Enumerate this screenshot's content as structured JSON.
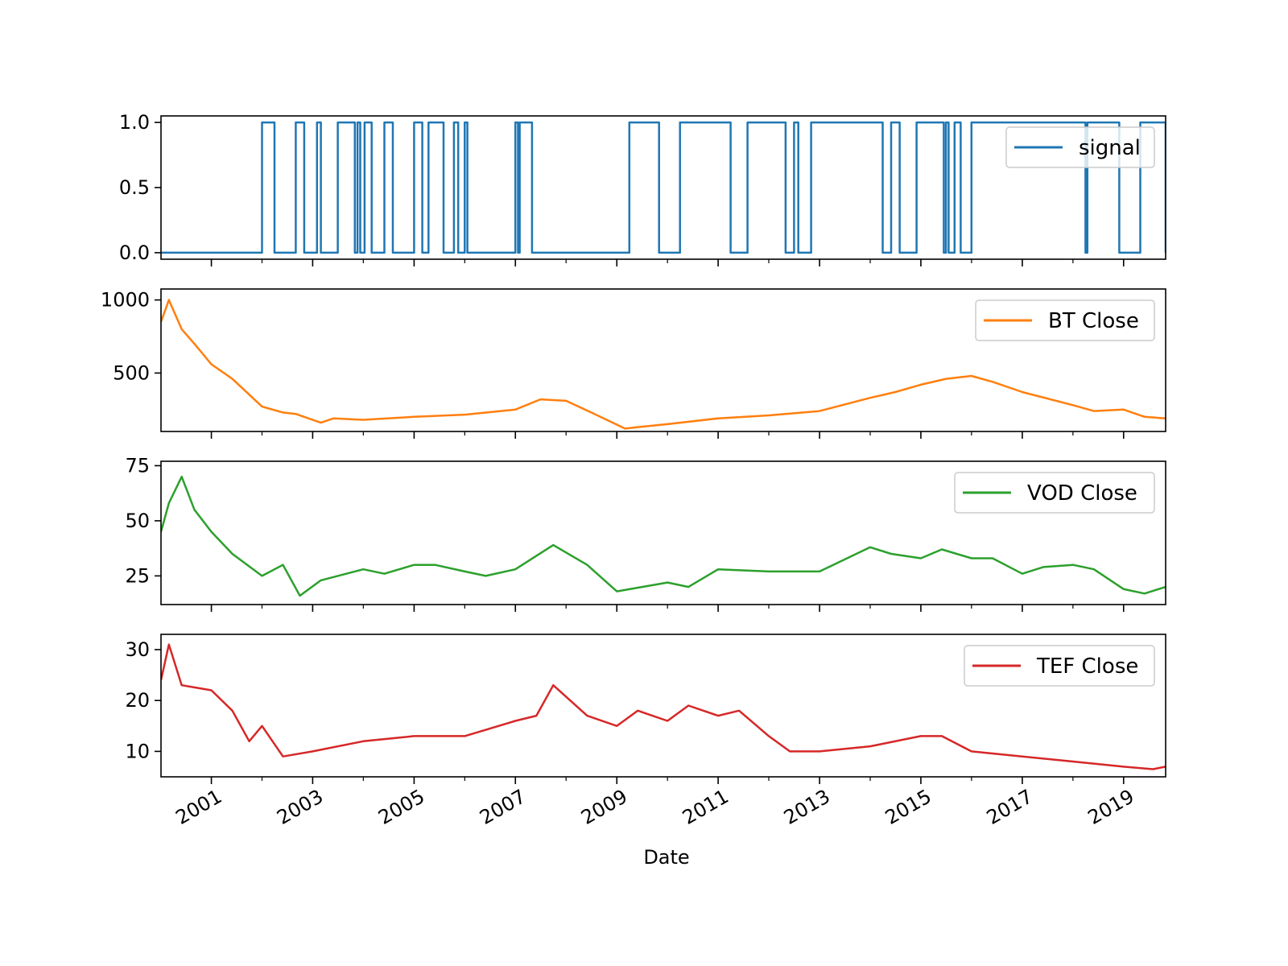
{
  "chart_data": {
    "type": "line",
    "layout": "stacked-subplots",
    "shared_x": true,
    "xlabel": "Date",
    "x_range": [
      "2000-01-04",
      "2019-10-31"
    ],
    "x_tick_labels": [
      "2001",
      "2003",
      "2005",
      "2007",
      "2009",
      "2011",
      "2013",
      "2015",
      "2017",
      "2019"
    ],
    "panels": [
      {
        "series_name": "signal",
        "color": "#1f77b4",
        "legend": "top-right",
        "ylim": [
          -0.05,
          1.05
        ],
        "yticks": [
          0.0,
          0.5,
          1.0
        ],
        "ytick_labels": [
          "0.0",
          "0.5",
          "1.0"
        ],
        "step": true,
        "x": [
          "2000-01-04",
          "2002-01-01",
          "2002-04-01",
          "2002-09-01",
          "2002-11-01",
          "2003-02-01",
          "2003-03-01",
          "2003-07-01",
          "2003-11-01",
          "2003-11-20",
          "2003-12-10",
          "2004-01-10",
          "2004-03-01",
          "2004-06-01",
          "2004-08-01",
          "2005-01-01",
          "2005-03-01",
          "2005-04-15",
          "2005-08-01",
          "2005-10-15",
          "2005-11-15",
          "2006-01-01",
          "2006-01-20",
          "2007-01-01",
          "2007-01-20",
          "2007-02-01",
          "2007-05-01",
          "2009-04-01",
          "2009-11-01",
          "2010-04-01",
          "2011-04-01",
          "2011-08-01",
          "2012-05-01",
          "2012-07-01",
          "2012-08-01",
          "2012-11-01",
          "2014-04-01",
          "2014-06-01",
          "2014-08-01",
          "2014-12-01",
          "2015-06-15",
          "2015-07-01",
          "2015-07-20",
          "2015-09-01",
          "2015-10-15",
          "2016-01-01",
          "2018-04-01",
          "2018-04-15",
          "2018-12-01",
          "2019-05-01",
          "2019-10-31"
        ],
        "y": [
          0,
          1,
          0,
          1,
          0,
          1,
          0,
          1,
          0,
          1,
          0,
          1,
          0,
          1,
          0,
          1,
          0,
          1,
          0,
          1,
          0,
          1,
          0,
          1,
          0,
          1,
          0,
          1,
          0,
          1,
          0,
          1,
          0,
          1,
          0,
          1,
          0,
          1,
          0,
          1,
          0,
          1,
          0,
          1,
          0,
          1,
          0,
          1,
          0,
          1,
          0
        ]
      },
      {
        "series_name": "BT Close",
        "color": "#ff7f0e",
        "legend": "top-right",
        "ylim": [
          100,
          1075
        ],
        "yticks": [
          500,
          1000
        ],
        "ytick_labels": [
          "500",
          "1000"
        ],
        "x": [
          "2000-01-04",
          "2000-03-01",
          "2000-06-01",
          "2000-09-01",
          "2001-01-01",
          "2001-06-01",
          "2002-01-01",
          "2002-06-01",
          "2002-09-01",
          "2003-03-01",
          "2003-06-01",
          "2004-01-01",
          "2005-01-01",
          "2006-01-01",
          "2007-01-01",
          "2007-07-01",
          "2008-01-01",
          "2008-07-01",
          "2009-03-01",
          "2009-06-01",
          "2010-01-01",
          "2011-01-01",
          "2012-01-01",
          "2013-01-01",
          "2014-01-01",
          "2014-07-01",
          "2015-01-01",
          "2015-07-01",
          "2016-01-01",
          "2016-06-01",
          "2017-01-01",
          "2018-01-01",
          "2018-06-01",
          "2019-01-01",
          "2019-06-01",
          "2019-10-31"
        ],
        "y": [
          850,
          1000,
          800,
          700,
          560,
          460,
          270,
          230,
          220,
          160,
          190,
          180,
          200,
          215,
          250,
          320,
          310,
          230,
          120,
          130,
          150,
          190,
          210,
          240,
          330,
          370,
          420,
          460,
          480,
          440,
          370,
          280,
          240,
          250,
          200,
          190
        ]
      },
      {
        "series_name": "VOD Close",
        "color": "#2ca02c",
        "legend": "top-right",
        "ylim": [
          12,
          77
        ],
        "yticks": [
          25,
          50,
          75
        ],
        "ytick_labels": [
          "25",
          "50",
          "75"
        ],
        "x": [
          "2000-01-04",
          "2000-03-01",
          "2000-06-01",
          "2000-09-01",
          "2001-01-01",
          "2001-06-01",
          "2002-01-01",
          "2002-06-01",
          "2002-10-01",
          "2003-03-01",
          "2004-01-01",
          "2004-06-01",
          "2005-01-01",
          "2005-06-01",
          "2006-01-01",
          "2006-06-01",
          "2007-01-01",
          "2007-10-01",
          "2008-06-01",
          "2009-01-01",
          "2010-01-01",
          "2010-06-01",
          "2011-01-01",
          "2012-01-01",
          "2013-01-01",
          "2014-01-01",
          "2014-06-01",
          "2015-01-01",
          "2015-06-01",
          "2016-01-01",
          "2016-06-01",
          "2017-01-01",
          "2017-06-01",
          "2018-01-01",
          "2018-06-01",
          "2019-01-01",
          "2019-06-01",
          "2019-10-31"
        ],
        "y": [
          45,
          58,
          70,
          55,
          45,
          35,
          25,
          30,
          16,
          23,
          28,
          26,
          30,
          30,
          27,
          25,
          28,
          39,
          30,
          18,
          22,
          20,
          28,
          27,
          27,
          38,
          35,
          33,
          37,
          33,
          33,
          26,
          29,
          30,
          28,
          19,
          17,
          20
        ]
      },
      {
        "series_name": "TEF Close",
        "color": "#d62728",
        "legend": "top-right",
        "ylim": [
          5,
          33
        ],
        "yticks": [
          10,
          20,
          30
        ],
        "ytick_labels": [
          "10",
          "20",
          "30"
        ],
        "x": [
          "2000-01-04",
          "2000-03-01",
          "2000-06-01",
          "2001-01-01",
          "2001-06-01",
          "2001-10-01",
          "2002-01-01",
          "2002-06-01",
          "2003-01-01",
          "2004-01-01",
          "2005-01-01",
          "2006-01-01",
          "2007-01-01",
          "2007-06-01",
          "2007-10-01",
          "2008-06-01",
          "2009-01-01",
          "2009-06-01",
          "2010-01-01",
          "2010-06-01",
          "2011-01-01",
          "2011-06-01",
          "2012-01-01",
          "2012-06-01",
          "2013-01-01",
          "2014-01-01",
          "2015-01-01",
          "2015-06-01",
          "2016-01-01",
          "2017-01-01",
          "2018-01-01",
          "2019-01-01",
          "2019-08-01",
          "2019-10-31"
        ],
        "y": [
          24,
          31,
          23,
          22,
          18,
          12,
          15,
          9,
          10,
          12,
          13,
          13,
          16,
          17,
          23,
          17,
          15,
          18,
          16,
          19,
          17,
          18,
          13,
          10,
          10,
          11,
          13,
          13,
          10,
          9,
          8,
          7,
          6.5,
          7
        ]
      }
    ]
  }
}
